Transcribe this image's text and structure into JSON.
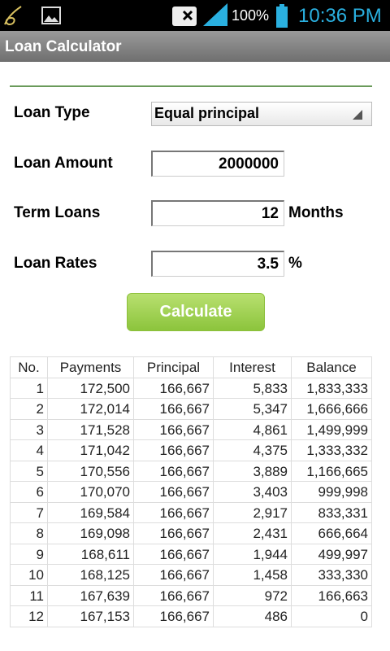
{
  "status_bar": {
    "battery": "100%",
    "time": "10:36 PM"
  },
  "app_bar": {
    "title": "Loan Calculator"
  },
  "form": {
    "loan_type": {
      "label": "Loan Type",
      "value": "Equal principal"
    },
    "loan_amount": {
      "label": "Loan Amount",
      "value": "2000000"
    },
    "term": {
      "label": "Term Loans",
      "value": "12",
      "unit": "Months"
    },
    "rate": {
      "label": "Loan Rates",
      "value": "3.5",
      "unit": "%"
    },
    "button": "Calculate"
  },
  "table": {
    "headers": [
      "No.",
      "Payments",
      "Principal",
      "Interest",
      "Balance"
    ],
    "rows": [
      [
        "1",
        "172,500",
        "166,667",
        "5,833",
        "1,833,333"
      ],
      [
        "2",
        "172,014",
        "166,667",
        "5,347",
        "1,666,666"
      ],
      [
        "3",
        "171,528",
        "166,667",
        "4,861",
        "1,499,999"
      ],
      [
        "4",
        "171,042",
        "166,667",
        "4,375",
        "1,333,332"
      ],
      [
        "5",
        "170,556",
        "166,667",
        "3,889",
        "1,166,665"
      ],
      [
        "6",
        "170,070",
        "166,667",
        "3,403",
        "999,998"
      ],
      [
        "7",
        "169,584",
        "166,667",
        "2,917",
        "833,331"
      ],
      [
        "8",
        "169,098",
        "166,667",
        "2,431",
        "666,664"
      ],
      [
        "9",
        "168,611",
        "166,667",
        "1,944",
        "499,997"
      ],
      [
        "10",
        "168,125",
        "166,667",
        "1,458",
        "333,330"
      ],
      [
        "11",
        "167,639",
        "166,667",
        "972",
        "166,663"
      ],
      [
        "12",
        "167,153",
        "166,667",
        "486",
        "0"
      ]
    ]
  }
}
